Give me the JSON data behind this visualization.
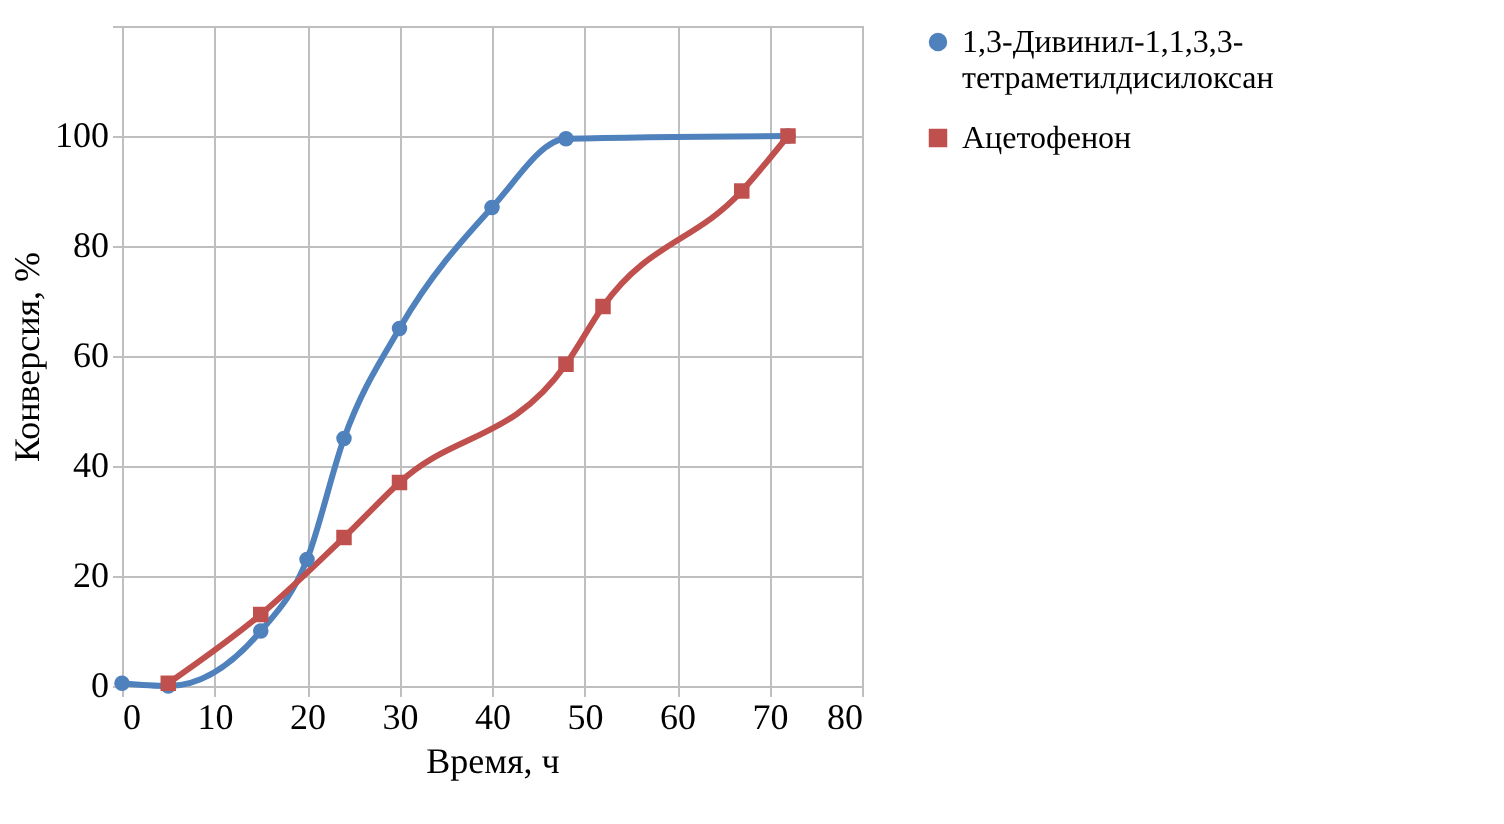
{
  "chart_data": {
    "type": "line",
    "xlabel": "Время, ч",
    "ylabel": "Конверсия, %",
    "xlim": [
      0,
      80
    ],
    "xticks": [
      0,
      10,
      20,
      30,
      40,
      50,
      60,
      70,
      80
    ],
    "ylim": [
      0,
      120
    ],
    "yticks": [
      0,
      20,
      40,
      60,
      80,
      100,
      {
        "value": 120,
        "label": null
      }
    ],
    "grid": true,
    "legend": "right",
    "line_style": "solid",
    "series": [
      {
        "name": "1,3-Дивинил-1,1,3,3-тетраметилдисилоксан",
        "color": "#4f81bd",
        "marker": "circle",
        "x": [
          0,
          5,
          15,
          20,
          24,
          30,
          40,
          48,
          72
        ],
        "values": [
          0.5,
          0,
          10,
          23,
          45,
          65,
          87,
          99.5,
          100
        ]
      },
      {
        "name": "Ацетофенон",
        "color": "#c0504d",
        "marker": "square",
        "x": [
          5,
          15,
          24,
          30,
          48,
          52,
          67,
          72
        ],
        "values": [
          0.5,
          13,
          27,
          37,
          58.5,
          69,
          90,
          100
        ]
      }
    ]
  }
}
